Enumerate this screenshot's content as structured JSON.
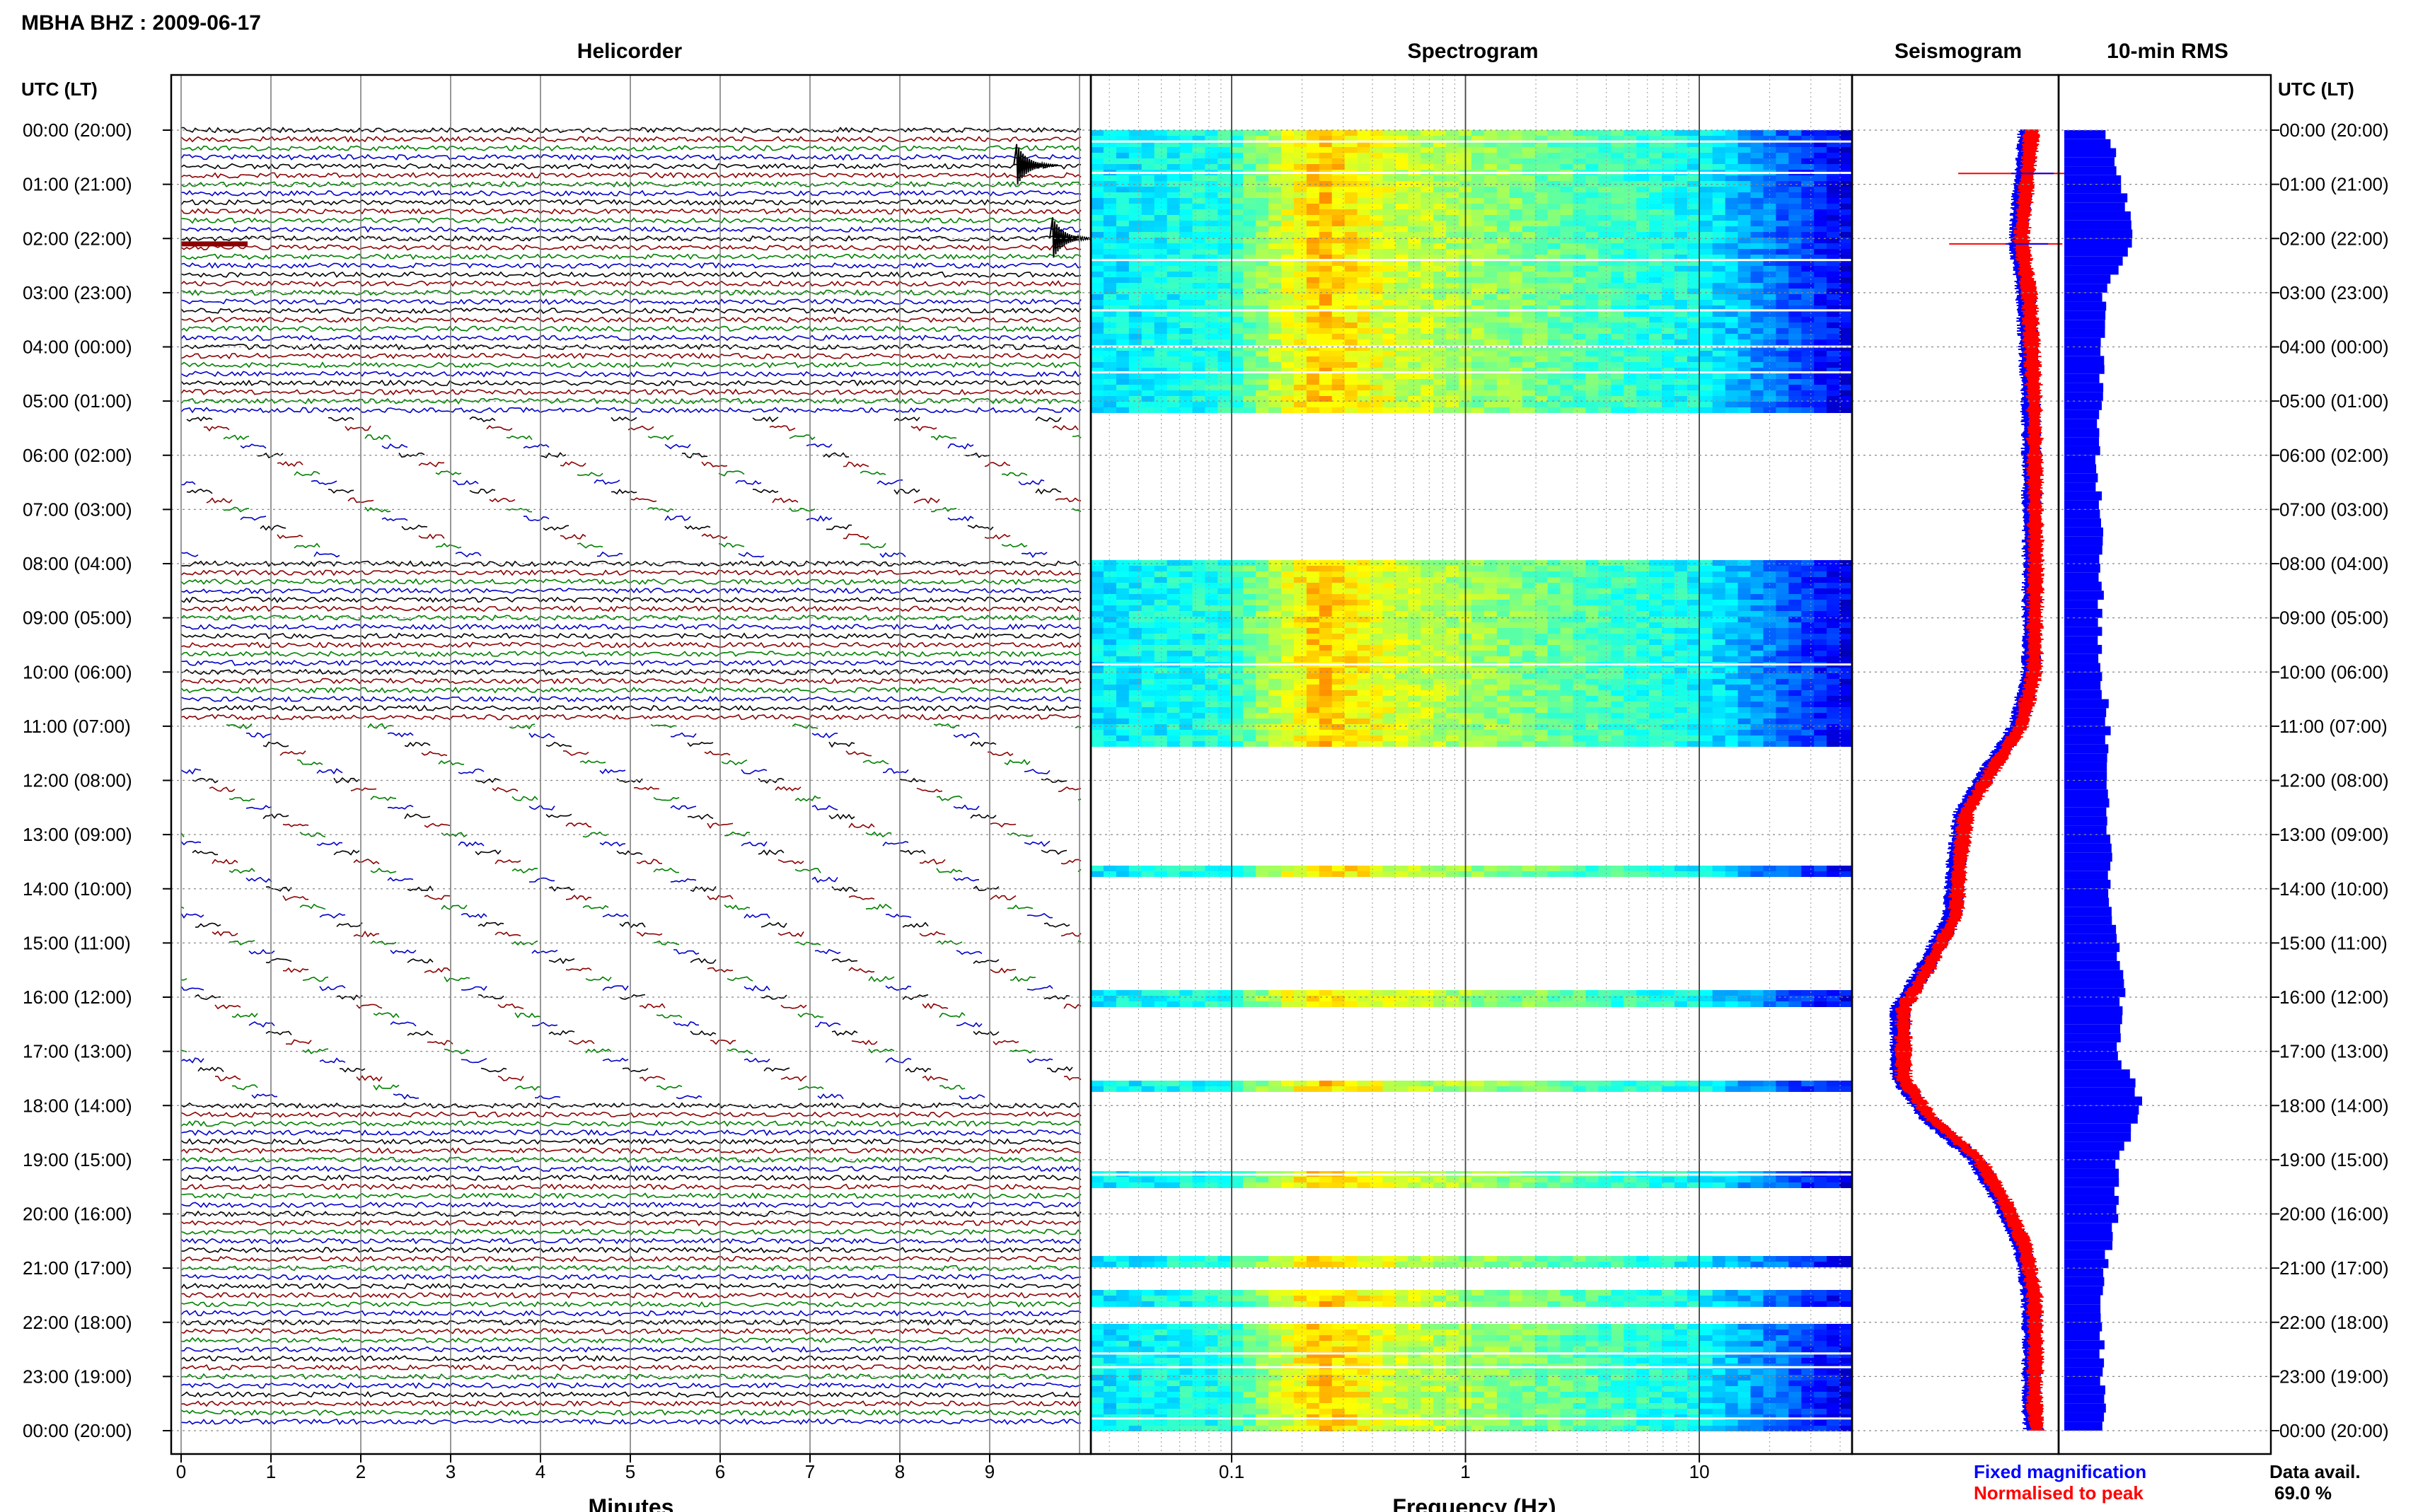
{
  "station_title": "MBHA BHZ : 2009-06-17",
  "panels": {
    "helicorder": "Helicorder",
    "spectrogram": "Spectrogram",
    "seismogram": "Seismogram",
    "rms": "10-min RMS"
  },
  "axis_header_left": "UTC (LT)",
  "axis_header_right": "UTC (LT)",
  "time_labels": [
    "00:00 (20:00)",
    "01:00 (21:00)",
    "02:00 (22:00)",
    "03:00 (23:00)",
    "04:00 (00:00)",
    "05:00 (01:00)",
    "06:00 (02:00)",
    "07:00 (03:00)",
    "08:00 (04:00)",
    "09:00 (05:00)",
    "10:00 (06:00)",
    "11:00 (07:00)",
    "12:00 (08:00)",
    "13:00 (09:00)",
    "14:00 (10:00)",
    "15:00 (11:00)",
    "16:00 (12:00)",
    "17:00 (13:00)",
    "18:00 (14:00)",
    "19:00 (15:00)",
    "20:00 (16:00)",
    "21:00 (17:00)",
    "22:00 (18:00)",
    "23:00 (19:00)",
    "00:00 (20:00)"
  ],
  "legend": {
    "fixed": "Fixed magnification",
    "normalised": "Normalised to peak",
    "fixed_color": "#0000ff",
    "normalised_color": "#ff0000"
  },
  "data_avail": {
    "label": "Data avail.",
    "value": "69.0 %"
  },
  "chart_data": [
    {
      "type": "line",
      "panel": "helicorder",
      "xlabel": "Minutes",
      "x_ticks": [
        "0",
        "1",
        "2",
        "3",
        "4",
        "5",
        "6",
        "7",
        "8",
        "9"
      ],
      "xlim": [
        0,
        10
      ],
      "ylim_hours": [
        0,
        24
      ],
      "trace_colors": [
        "#000000",
        "#8b0000",
        "#008000",
        "#0000c8"
      ],
      "data_gaps_hours": [
        [
          5.3,
          8.0
        ],
        [
          11.0,
          18.0
        ]
      ],
      "events": [
        {
          "hour": 0.65,
          "minute": 9.3
        },
        {
          "hour": 2.0,
          "minute": 9.7
        }
      ]
    },
    {
      "type": "heatmap",
      "panel": "spectrogram",
      "xlabel": "Frequency (Hz)",
      "xscale": "log",
      "xlim": [
        0.025,
        45
      ],
      "x_ticks": [
        "0.1",
        "1",
        "10"
      ],
      "ylim_hours": [
        0,
        24
      ],
      "colormap": "jet",
      "data_gaps_hours": [
        [
          5.15,
          7.85
        ],
        [
          11.3,
          13.55
        ],
        [
          13.75,
          15.8
        ],
        [
          16.1,
          17.5
        ],
        [
          17.7,
          19.2
        ],
        [
          19.45,
          20.7
        ],
        [
          20.95,
          21.4
        ],
        [
          21.7,
          22.0
        ]
      ]
    },
    {
      "type": "line",
      "panel": "seismogram",
      "series": [
        {
          "name": "Fixed magnification",
          "hours": [
            0,
            2,
            3,
            4,
            5,
            8,
            10,
            11,
            11.8,
            12.6,
            13.5,
            14.5,
            15.5,
            16.2,
            17,
            17.5,
            18.2,
            19,
            19.8,
            20.6,
            21.5,
            22.5,
            23.5,
            24
          ],
          "values": [
            0.6,
            0.52,
            0.58,
            0.6,
            0.62,
            0.63,
            0.62,
            0.52,
            0.3,
            0.1,
            0.05,
            0.02,
            -0.2,
            -0.38,
            -0.38,
            -0.38,
            -0.18,
            0.2,
            0.4,
            0.55,
            0.62,
            0.63,
            0.62,
            0.64
          ]
        },
        {
          "name": "Normalised to peak",
          "hours": [
            0,
            2,
            3,
            4,
            5,
            8,
            10,
            11,
            11.8,
            12.6,
            13.5,
            14.5,
            15.5,
            16.2,
            17,
            17.5,
            18.2,
            19,
            19.8,
            20.6,
            21.5,
            22.5,
            23.5,
            24
          ],
          "values": [
            0.6,
            0.52,
            0.58,
            0.6,
            0.62,
            0.63,
            0.62,
            0.52,
            0.3,
            0.1,
            0.05,
            0.02,
            -0.2,
            -0.38,
            -0.38,
            -0.38,
            -0.18,
            0.2,
            0.4,
            0.55,
            0.62,
            0.63,
            0.62,
            0.64
          ]
        }
      ],
      "spikes_hours": [
        0.8,
        2.1
      ]
    },
    {
      "type": "bar",
      "panel": "rms",
      "orientation": "horizontal",
      "bin_minutes": 10,
      "hours": [
        0,
        1,
        2,
        3,
        4,
        5,
        6,
        7,
        8,
        9,
        10,
        11,
        12,
        13,
        14,
        15,
        16,
        17,
        18,
        19,
        20,
        21,
        22,
        23,
        24
      ],
      "values": [
        0.4,
        0.55,
        0.65,
        0.38,
        0.35,
        0.35,
        0.32,
        0.33,
        0.35,
        0.34,
        0.35,
        0.42,
        0.4,
        0.42,
        0.43,
        0.5,
        0.55,
        0.5,
        0.75,
        0.5,
        0.5,
        0.38,
        0.35,
        0.36,
        0.38
      ],
      "ylim_hours": [
        0,
        24
      ]
    }
  ]
}
